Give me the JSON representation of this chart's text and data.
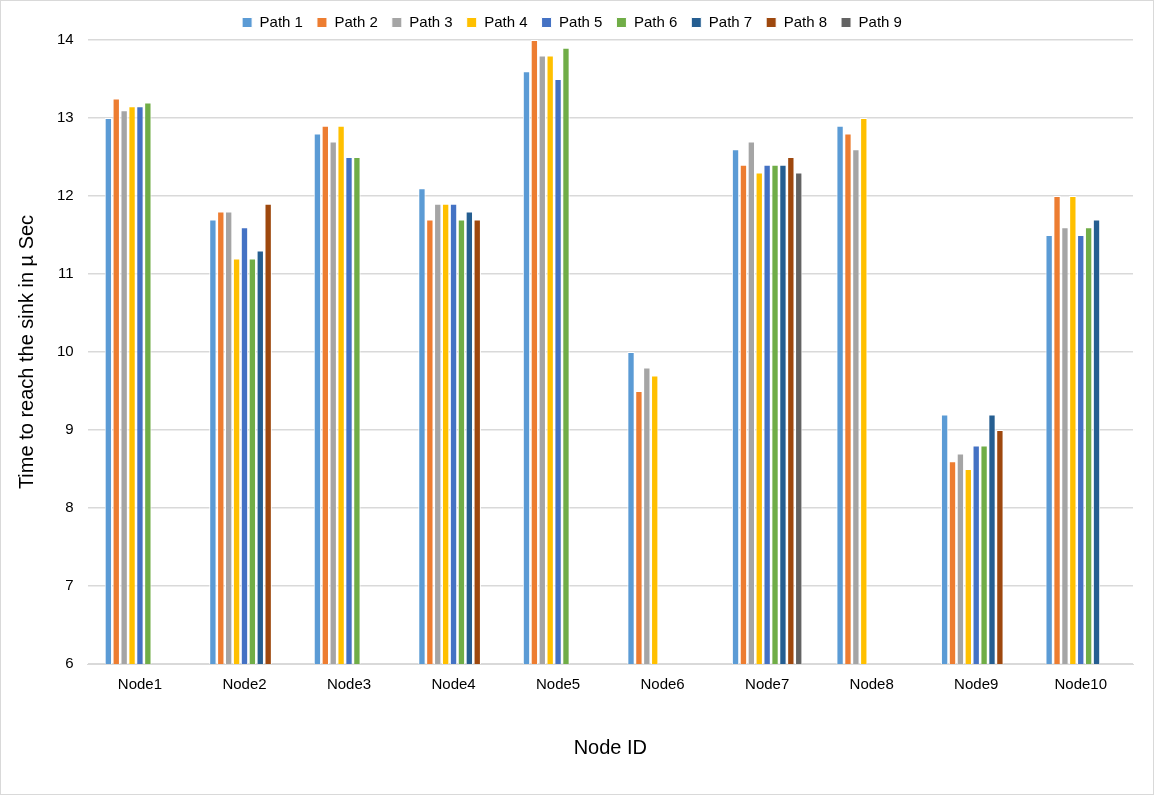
{
  "chart_data": {
    "type": "bar",
    "xlabel": "Node ID",
    "ylabel": "Time to reach the sink in µ Sec",
    "categories": [
      "Node1",
      "Node2",
      "Node3",
      "Node4",
      "Node5",
      "Node6",
      "Node7",
      "Node8",
      "Node9",
      "Node10"
    ],
    "series": [
      {
        "name": "Path 1",
        "color": "#5b9bd5",
        "values": [
          13,
          11.7,
          12.8,
          12.1,
          13.6,
          10,
          12.6,
          12.9,
          9.2,
          11.5
        ]
      },
      {
        "name": "Path 2",
        "color": "#ed7d31",
        "values": [
          13.25,
          11.8,
          12.9,
          11.7,
          14,
          9.5,
          12.4,
          12.8,
          8.6,
          12
        ]
      },
      {
        "name": "Path 3",
        "color": "#a5a5a5",
        "values": [
          13.1,
          11.8,
          12.7,
          11.9,
          13.8,
          9.8,
          12.7,
          12.6,
          8.7,
          11.6
        ]
      },
      {
        "name": "Path 4",
        "color": "#ffc000",
        "values": [
          13.15,
          11.2,
          12.9,
          11.9,
          13.8,
          9.7,
          12.3,
          13,
          8.5,
          12
        ]
      },
      {
        "name": "Path 5",
        "color": "#4472c4",
        "values": [
          13.15,
          11.6,
          12.5,
          11.9,
          13.5,
          null,
          12.4,
          null,
          8.8,
          11.5
        ]
      },
      {
        "name": "Path 6",
        "color": "#70ad47",
        "values": [
          13.2,
          11.2,
          12.5,
          11.7,
          13.9,
          null,
          12.4,
          null,
          8.8,
          11.6
        ]
      },
      {
        "name": "Path 7",
        "color": "#255e91",
        "values": [
          null,
          11.3,
          null,
          11.8,
          null,
          null,
          12.4,
          null,
          9.2,
          11.7
        ]
      },
      {
        "name": "Path 8",
        "color": "#9e480e",
        "values": [
          null,
          11.9,
          null,
          11.7,
          null,
          null,
          12.5,
          null,
          9,
          null
        ]
      },
      {
        "name": "Path 9",
        "color": "#636363",
        "values": [
          null,
          null,
          null,
          null,
          null,
          null,
          12.3,
          null,
          null,
          null
        ]
      }
    ],
    "ylim": [
      6,
      14
    ],
    "yticks": [
      6,
      7,
      8,
      9,
      10,
      11,
      12,
      13,
      14
    ],
    "grid": "y",
    "legend": "top"
  }
}
